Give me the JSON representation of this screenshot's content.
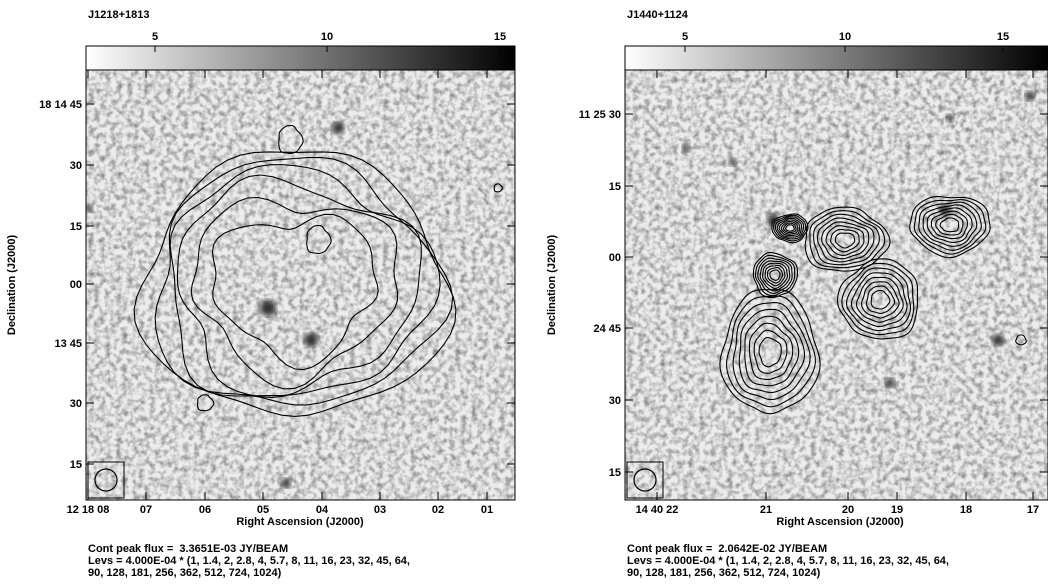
{
  "panels": [
    {
      "title": "J1218+1813",
      "colorbar_ticks": [
        5,
        10,
        15
      ],
      "y_ticks": [
        "18 14 45",
        "30",
        "15",
        "00",
        "13 45",
        "30",
        "15"
      ],
      "x_ticks": [
        "12 18 08",
        "07",
        "06",
        "05",
        "04",
        "03",
        "02",
        "01"
      ],
      "x_label": "Right Ascension (J2000)",
      "y_label": "Declination (J2000)",
      "footer": [
        "Cont peak flux =  3.3651E-03 JY/BEAM",
        "Levs = 4.000E-04 * (1, 1.4, 2, 2.8, 4, 5.7, 8, 11, 16, 23, 32, 45, 64,",
        "90, 128, 181, 256, 362, 512, 724, 1024)"
      ]
    },
    {
      "title": "J1440+1124",
      "colorbar_ticks": [
        5,
        10,
        15
      ],
      "y_ticks": [
        "11 25 30",
        "15",
        "00",
        "24 45",
        "30",
        "15"
      ],
      "x_ticks": [
        "14 40 22",
        "21",
        "20",
        "19",
        "18",
        "17"
      ],
      "x_label": "Right Ascension (J2000)",
      "y_label": "Declination (J2000)",
      "footer": [
        "Cont peak flux =  2.0642E-02 JY/BEAM",
        "Levs = 4.000E-04 * (1, 1.4, 2, 2.8, 4, 5.7, 8, 11, 16, 23, 32, 45, 64,",
        "90, 128, 181, 256, 362, 512, 724, 1024)"
      ]
    }
  ]
}
